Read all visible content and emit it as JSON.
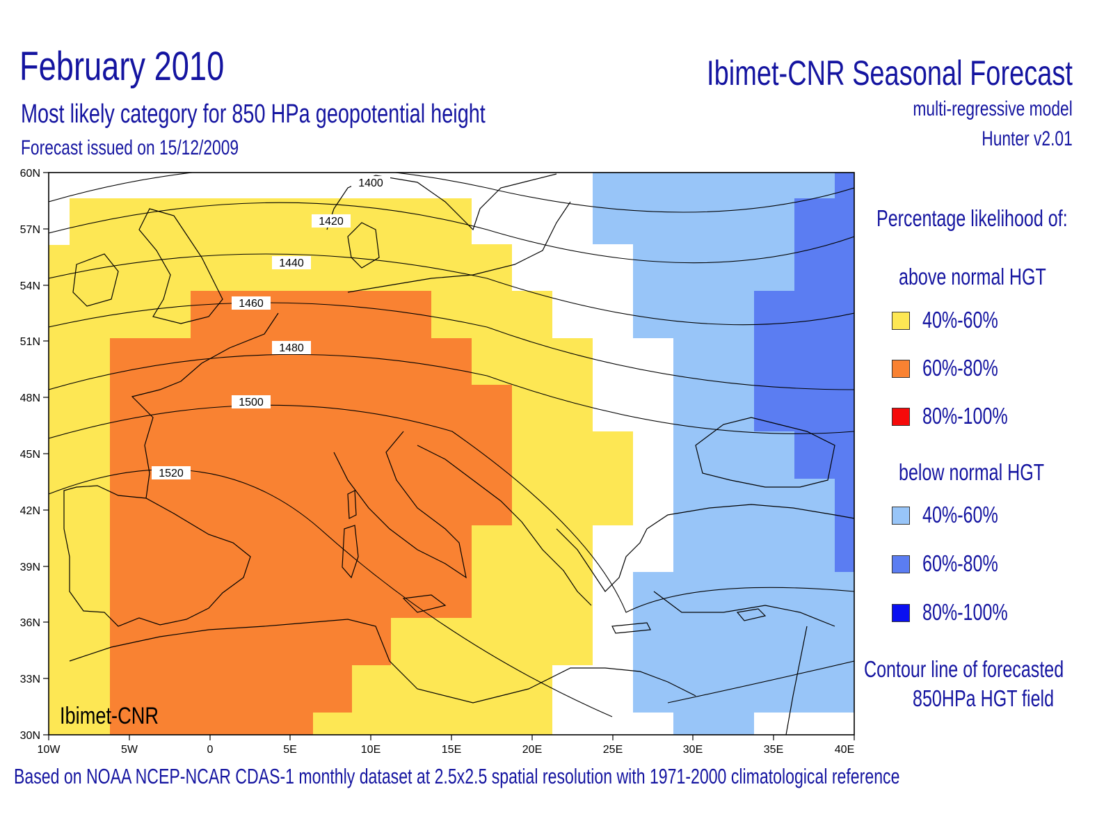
{
  "header": {
    "title": "February 2010",
    "subtitle": "Most likely category for 850 HPa geopotential height",
    "issued": "Forecast issued on 15/12/2009"
  },
  "brand": {
    "title": "Ibimet-CNR Seasonal Forecast",
    "model": "multi-regressive model",
    "version": "Hunter v2.01"
  },
  "map": {
    "watermark": "Ibimet-CNR",
    "lon_range": [
      -10,
      40
    ],
    "lat_range": [
      30,
      60
    ],
    "x_tick_labels": [
      "10W",
      "5W",
      "0",
      "5E",
      "10E",
      "15E",
      "20E",
      "25E",
      "30E",
      "35E",
      "40E"
    ],
    "y_tick_labels": [
      "60N",
      "57N",
      "54N",
      "51N",
      "48N",
      "45N",
      "42N",
      "39N",
      "36N",
      "33N",
      "30N"
    ],
    "category_colors": {
      "above_40_60": "#fde754",
      "above_60_80": "#f98232",
      "below_40_60": "#98c5f8",
      "below_60_80": "#5b7df2"
    },
    "contour_labels": [
      "1400",
      "1420",
      "1440",
      "1460",
      "1480",
      "1500",
      "1520"
    ]
  },
  "legend": {
    "title": "Percentage likelihood of:",
    "above_heading": "above normal HGT",
    "below_heading": "below normal HGT",
    "above_items": [
      {
        "label": "40%-60%",
        "color": "#fde754"
      },
      {
        "label": "60%-80%",
        "color": "#f98232"
      },
      {
        "label": "80%-100%",
        "color": "#f50a0a"
      }
    ],
    "below_items": [
      {
        "label": "40%-60%",
        "color": "#98c5f8"
      },
      {
        "label": "60%-80%",
        "color": "#5b7df2"
      },
      {
        "label": "80%-100%",
        "color": "#0a10f0"
      }
    ],
    "contour_note_line1": "Contour line of forecasted",
    "contour_note_line2": "850HPa HGT field"
  },
  "footer": {
    "note": "Based on NOAA NCEP-NCAR CDAS-1 monthly dataset at 2.5x2.5 spatial resolution with 1971-2000 climatological reference"
  }
}
